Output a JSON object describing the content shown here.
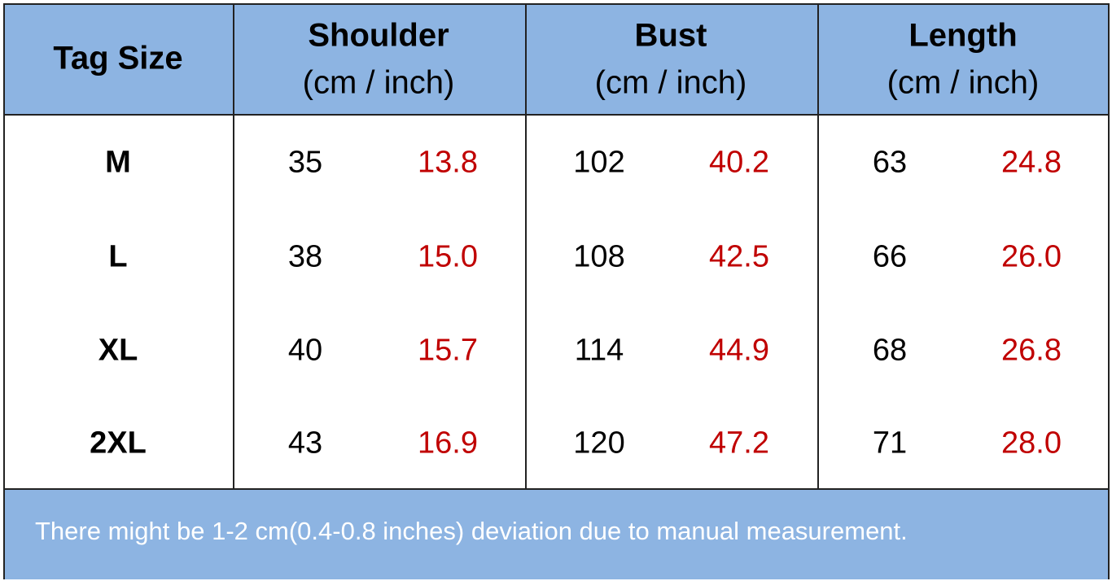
{
  "header": {
    "columns": [
      {
        "title": "Tag Size"
      },
      {
        "title": "Shoulder",
        "unit": "(cm / inch)"
      },
      {
        "title": "Bust",
        "unit": "(cm / inch)"
      },
      {
        "title": "Length",
        "unit": "(cm / inch)"
      }
    ]
  },
  "table": {
    "rows": [
      [
        "M",
        "35",
        "13.8",
        "102",
        "40.2",
        "63",
        "24.8"
      ],
      [
        "L",
        "38",
        "15.0",
        "108",
        "42.5",
        "66",
        "26.0"
      ],
      [
        "XL",
        "40",
        "15.7",
        "114",
        "44.9",
        "68",
        "26.8"
      ],
      [
        "2XL",
        "43",
        "16.9",
        "120",
        "47.2",
        "71",
        "28.0"
      ]
    ]
  },
  "note": "There might be 1-2 cm(0.4-0.8 inches) deviation due to manual measurement."
}
